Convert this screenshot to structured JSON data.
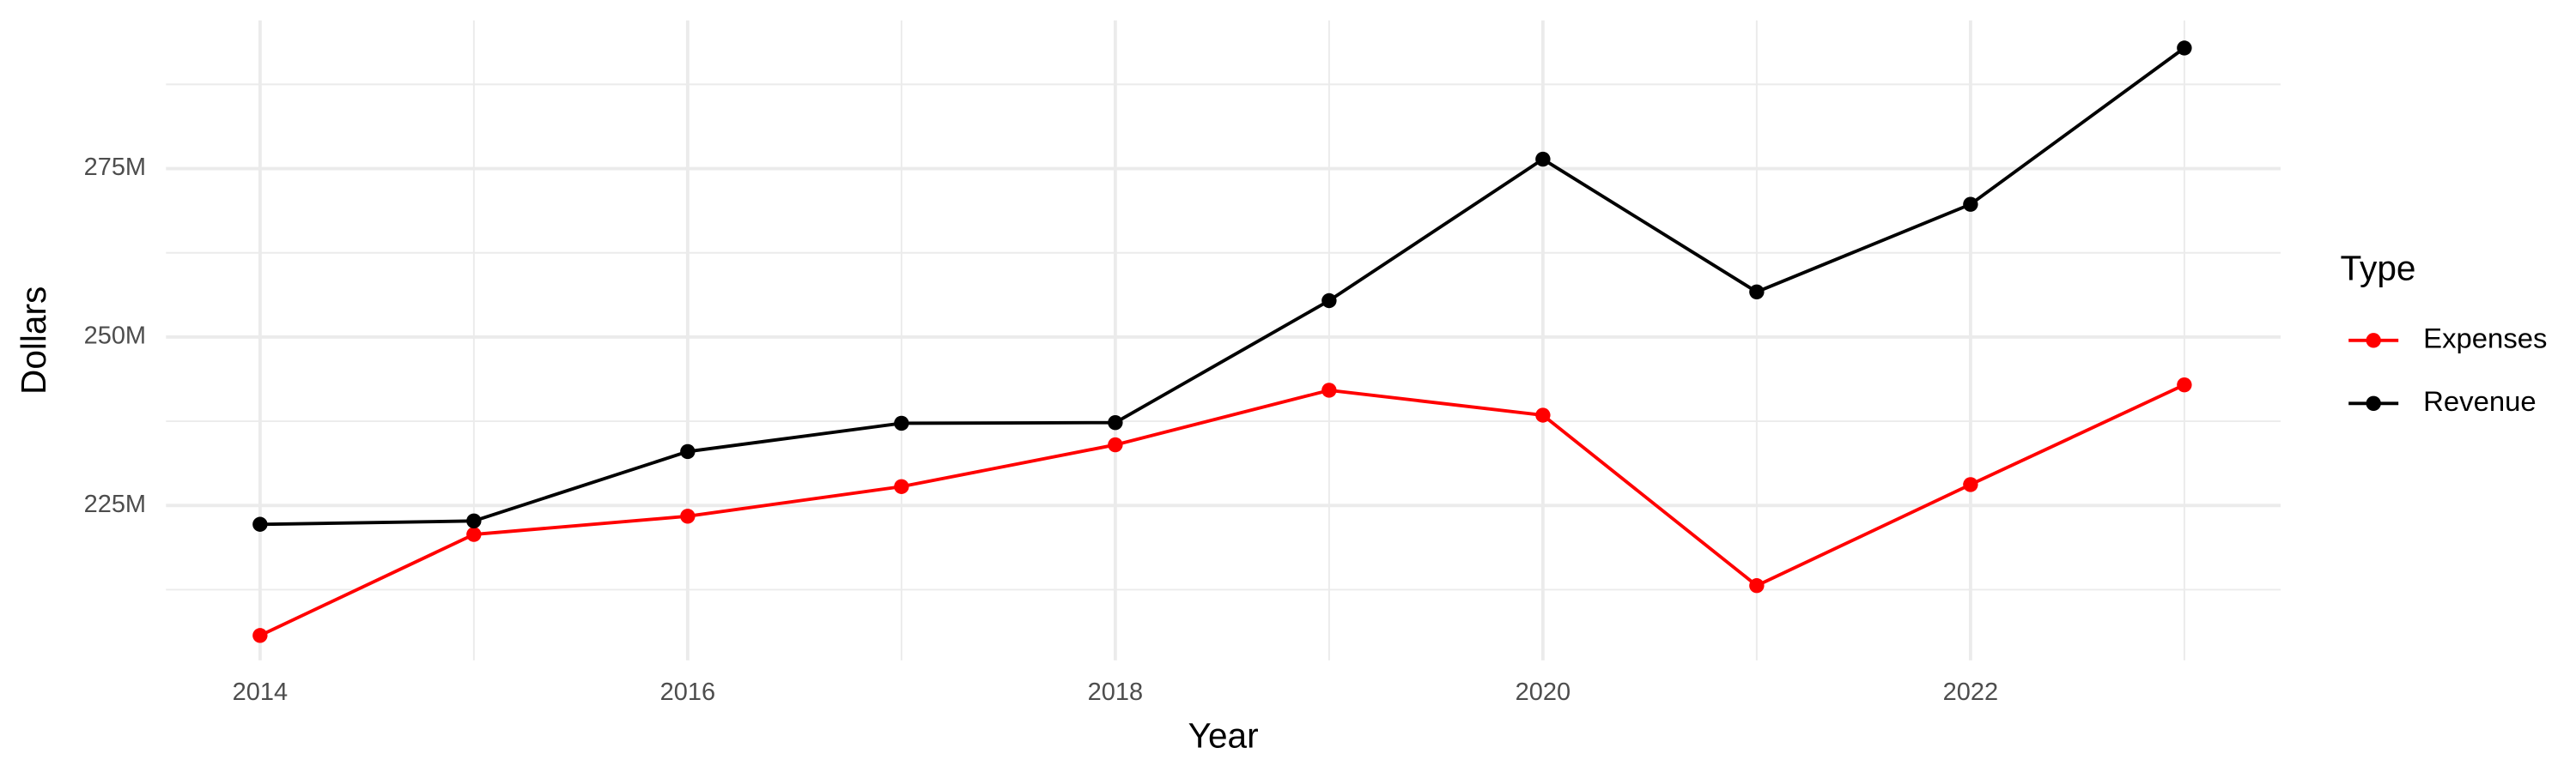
{
  "chart_data": {
    "type": "line",
    "x_label": "Year",
    "y_label": "Dollars",
    "x": [
      2014,
      2015,
      2016,
      2017,
      2018,
      2019,
      2020,
      2021,
      2022,
      2023
    ],
    "series": [
      {
        "name": "Expenses",
        "color": "#ff0000",
        "values": [
          205700000,
          220700000,
          223400000,
          227800000,
          234000000,
          242100000,
          238400000,
          213100000,
          228100000,
          242900000
        ]
      },
      {
        "name": "Revenue",
        "color": "#000000",
        "values": [
          222200000,
          222700000,
          233000000,
          237200000,
          237300000,
          255400000,
          276400000,
          256700000,
          269700000,
          292900000
        ]
      }
    ],
    "xlim": [
      2013.56,
      2023.45
    ],
    "xticks": [
      2014,
      2016,
      2018,
      2020,
      2022
    ],
    "ylim": [
      202000000,
      297000000
    ],
    "yticks": [
      {
        "value": 225000000,
        "label": "225M"
      },
      {
        "value": 250000000,
        "label": "250M"
      },
      {
        "value": 275000000,
        "label": "275M"
      }
    ],
    "grid": true,
    "legend_title": "Type",
    "legend_position": "right"
  }
}
